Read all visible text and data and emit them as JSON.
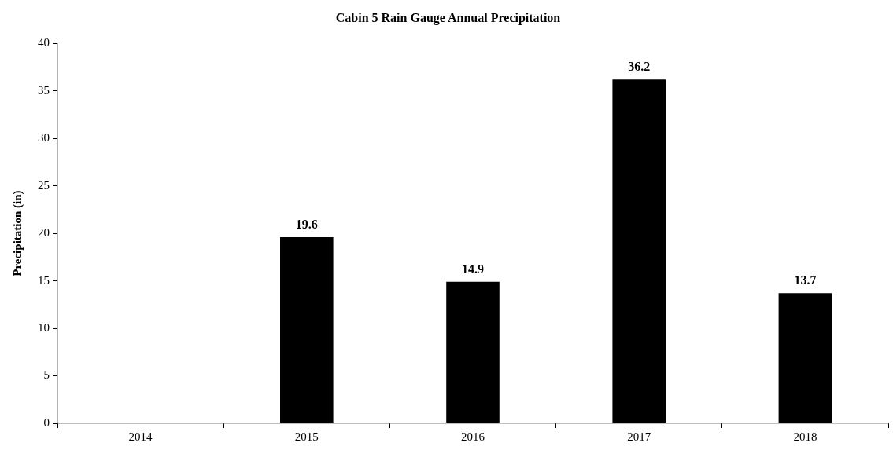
{
  "chart_data": {
    "type": "bar",
    "title": "Cabin 5 Rain Gauge Annual Precipitation",
    "ylabel": "Precipitation (in)",
    "categories": [
      "2014",
      "2015",
      "2016",
      "2017",
      "2018"
    ],
    "values": [
      null,
      19.6,
      14.9,
      36.2,
      13.7
    ],
    "color": "#000000",
    "ylim": [
      0,
      40
    ],
    "yticks": [
      0,
      5,
      10,
      15,
      20,
      25,
      30,
      35,
      40
    ],
    "data_labels": true
  }
}
